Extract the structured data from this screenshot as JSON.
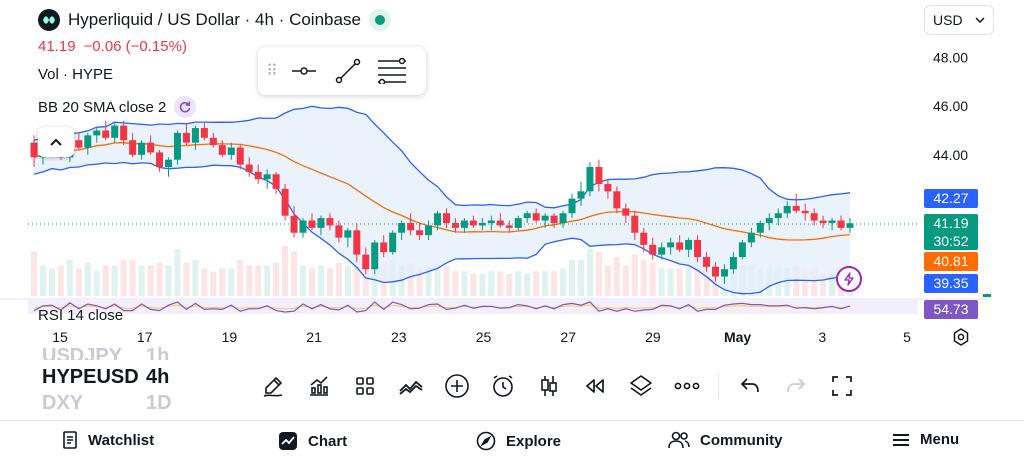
{
  "header": {
    "title": "Hyperliquid / US Dollar · 4h · Coinbase",
    "price": "41.19",
    "change": "−0.06 (−0.15%)",
    "volume_label": "Vol · HYPE",
    "bb_label": "BB 20 SMA close 2",
    "rsi_label": "RSI 14 close",
    "currency": "USD"
  },
  "price_axis": {
    "labels": [
      "48.00",
      "46.00",
      "44.00"
    ],
    "tags": {
      "bb_upper": "42.27",
      "last_price": "41.19",
      "countdown": "30:52",
      "bb_basis": "40.81",
      "bb_lower": "39.35",
      "rsi": "54.73"
    }
  },
  "time_axis": {
    "labels": [
      "15",
      "17",
      "19",
      "21",
      "23",
      "25",
      "27",
      "29",
      "May",
      "3",
      "5"
    ]
  },
  "colors": {
    "up": "#089981",
    "down": "#f23645",
    "bb_band": "#2962ff",
    "bb_basis": "#ff6d00",
    "bb_fill": "#e3eefb",
    "rsi": "#7e57c2",
    "rsi_ma": "#f7c948",
    "tag_upper": "#2962ff",
    "tag_basis": "#ff6d00",
    "tag_rsi": "#7e57c2"
  },
  "chart_data": {
    "type": "candlestick",
    "symbol": "HYPEUSD",
    "timeframe": "4h",
    "ylim": [
      38.2,
      48.8
    ],
    "xlim_label_days": [
      "15",
      "17",
      "19",
      "21",
      "23",
      "25",
      "27",
      "29",
      "May",
      "3",
      "5"
    ],
    "candles": [
      [
        44.5,
        44.8,
        43.5,
        43.9
      ],
      [
        43.9,
        44.4,
        43.6,
        44.1
      ],
      [
        44.1,
        44.6,
        43.9,
        44.4
      ],
      [
        44.4,
        44.6,
        43.8,
        43.9
      ],
      [
        43.9,
        44.7,
        43.7,
        44.6
      ],
      [
        44.6,
        44.9,
        44.2,
        44.3
      ],
      [
        44.3,
        44.9,
        44.0,
        44.8
      ],
      [
        44.8,
        45.1,
        44.5,
        45.0
      ],
      [
        45.0,
        45.4,
        44.6,
        44.7
      ],
      [
        44.7,
        45.3,
        44.5,
        45.2
      ],
      [
        45.2,
        45.4,
        44.4,
        44.6
      ],
      [
        44.6,
        44.9,
        43.9,
        44.0
      ],
      [
        44.0,
        44.6,
        43.8,
        44.5
      ],
      [
        44.5,
        44.8,
        44.0,
        44.1
      ],
      [
        44.1,
        44.2,
        43.3,
        43.5
      ],
      [
        43.5,
        43.9,
        43.1,
        43.8
      ],
      [
        43.8,
        45.0,
        43.6,
        44.9
      ],
      [
        44.9,
        45.3,
        44.4,
        44.5
      ],
      [
        44.5,
        45.2,
        44.2,
        45.1
      ],
      [
        45.1,
        45.3,
        44.6,
        44.7
      ],
      [
        44.7,
        44.9,
        44.3,
        44.4
      ],
      [
        44.4,
        44.6,
        43.9,
        44.0
      ],
      [
        44.0,
        44.5,
        43.8,
        44.3
      ],
      [
        44.3,
        44.4,
        43.4,
        43.6
      ],
      [
        43.6,
        43.9,
        43.1,
        43.3
      ],
      [
        43.3,
        43.6,
        42.8,
        43.0
      ],
      [
        43.0,
        43.4,
        42.6,
        43.2
      ],
      [
        43.2,
        43.3,
        42.4,
        42.6
      ],
      [
        42.6,
        42.8,
        41.3,
        41.5
      ],
      [
        41.5,
        41.9,
        40.6,
        40.8
      ],
      [
        40.8,
        41.4,
        40.6,
        41.3
      ],
      [
        41.3,
        41.6,
        40.9,
        41.0
      ],
      [
        41.0,
        41.5,
        40.7,
        41.4
      ],
      [
        41.4,
        41.6,
        40.9,
        41.1
      ],
      [
        41.1,
        41.3,
        40.4,
        40.6
      ],
      [
        40.6,
        41.0,
        40.2,
        40.9
      ],
      [
        40.9,
        41.2,
        39.6,
        39.9
      ],
      [
        39.9,
        40.2,
        39.1,
        39.3
      ],
      [
        39.3,
        40.5,
        39.1,
        40.4
      ],
      [
        40.4,
        40.7,
        39.8,
        40.0
      ],
      [
        40.0,
        40.9,
        39.9,
        40.8
      ],
      [
        40.8,
        41.3,
        40.5,
        41.2
      ],
      [
        41.2,
        41.6,
        40.7,
        40.9
      ],
      [
        40.9,
        41.2,
        40.5,
        40.7
      ],
      [
        40.7,
        41.3,
        40.5,
        41.1
      ],
      [
        41.1,
        41.7,
        40.9,
        41.6
      ],
      [
        41.6,
        41.8,
        41.0,
        41.2
      ],
      [
        41.2,
        41.4,
        40.8,
        41.0
      ],
      [
        41.0,
        41.4,
        40.8,
        41.3
      ],
      [
        41.3,
        41.5,
        41.0,
        41.1
      ],
      [
        41.1,
        41.4,
        40.9,
        41.2
      ],
      [
        41.2,
        41.5,
        40.9,
        41.3
      ],
      [
        41.3,
        41.6,
        41.0,
        41.1
      ],
      [
        41.1,
        41.3,
        40.8,
        41.0
      ],
      [
        41.0,
        41.5,
        40.9,
        41.4
      ],
      [
        41.4,
        41.7,
        41.2,
        41.6
      ],
      [
        41.6,
        41.8,
        41.2,
        41.3
      ],
      [
        41.3,
        41.6,
        41.0,
        41.5
      ],
      [
        41.5,
        41.6,
        41.0,
        41.2
      ],
      [
        41.2,
        41.7,
        41.0,
        41.6
      ],
      [
        41.6,
        42.4,
        41.4,
        42.2
      ],
      [
        42.2,
        42.9,
        41.9,
        42.5
      ],
      [
        42.5,
        43.7,
        42.3,
        43.5
      ],
      [
        43.5,
        43.8,
        42.5,
        42.8
      ],
      [
        42.8,
        43.0,
        42.2,
        42.5
      ],
      [
        42.5,
        42.7,
        41.6,
        41.8
      ],
      [
        41.8,
        42.0,
        41.2,
        41.5
      ],
      [
        41.5,
        41.7,
        40.5,
        40.8
      ],
      [
        40.8,
        41.0,
        40.0,
        40.3
      ],
      [
        40.3,
        40.6,
        39.7,
        39.9
      ],
      [
        39.9,
        40.4,
        39.7,
        40.2
      ],
      [
        40.2,
        40.6,
        39.9,
        40.4
      ],
      [
        40.4,
        40.7,
        40.0,
        40.1
      ],
      [
        40.1,
        40.6,
        39.8,
        40.5
      ],
      [
        40.5,
        40.7,
        39.6,
        39.8
      ],
      [
        39.8,
        40.0,
        39.2,
        39.4
      ],
      [
        39.4,
        39.6,
        38.8,
        39.0
      ],
      [
        39.0,
        39.5,
        38.7,
        39.3
      ],
      [
        39.3,
        40.0,
        39.1,
        39.8
      ],
      [
        39.8,
        40.5,
        39.7,
        40.4
      ],
      [
        40.4,
        41.0,
        40.2,
        40.8
      ],
      [
        40.8,
        41.3,
        40.6,
        41.2
      ],
      [
        41.2,
        41.6,
        40.9,
        41.4
      ],
      [
        41.4,
        41.8,
        41.1,
        41.6
      ],
      [
        41.6,
        42.1,
        41.4,
        41.9
      ],
      [
        41.9,
        42.4,
        41.6,
        41.7
      ],
      [
        41.7,
        42.0,
        41.3,
        41.6
      ],
      [
        41.6,
        41.8,
        41.1,
        41.3
      ],
      [
        41.3,
        41.5,
        41.0,
        41.2
      ],
      [
        41.2,
        41.4,
        40.9,
        41.3
      ],
      [
        41.3,
        41.5,
        40.9,
        41.0
      ],
      [
        41.0,
        41.4,
        40.8,
        41.19
      ]
    ],
    "bollinger": {
      "period": 20,
      "stddev": 2,
      "source": "close"
    }
  },
  "symbols": {
    "previous": "USDJPY",
    "current": "HYPEUSD",
    "next": "DXY",
    "prev_tf": "1h",
    "current_tf": "4h",
    "next_tf": "1D"
  },
  "toolbar_icons": [
    "brush-icon",
    "indicators-icon",
    "templates-icon",
    "compare-icon",
    "add-icon",
    "alert-icon",
    "candles-icon",
    "replay-icon",
    "layers-icon",
    "more-icon",
    "undo-icon",
    "redo-icon",
    "fullscreen-icon"
  ],
  "bottom_nav": {
    "watchlist": "Watchlist",
    "chart": "Chart",
    "explore": "Explore",
    "community": "Community",
    "menu": "Menu"
  }
}
